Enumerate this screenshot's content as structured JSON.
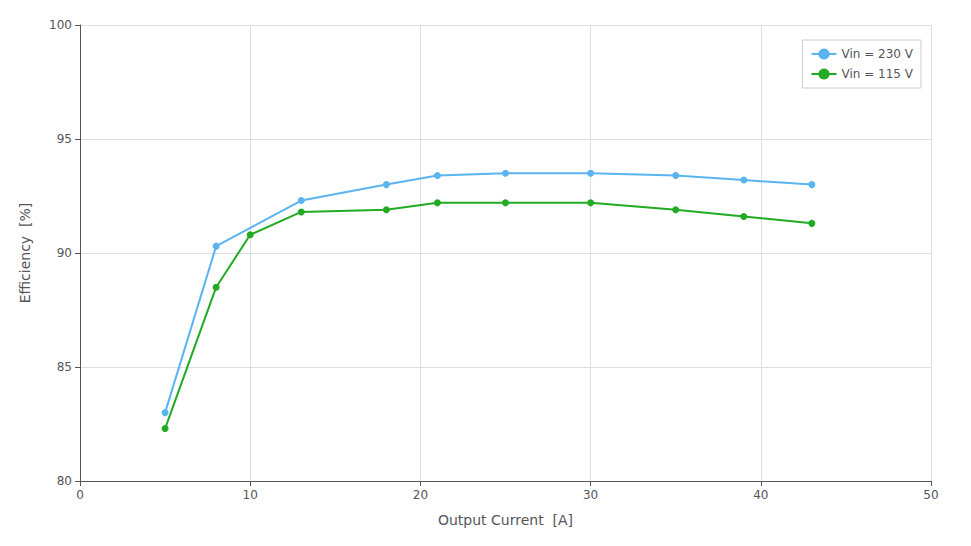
{
  "chart_data": {
    "type": "line",
    "xlabel": "Output Current  [A]",
    "ylabel": "Efficiency  [%]",
    "series": [
      {
        "name": "Vin = 230 V",
        "color": "#5ab4f0",
        "x": [
          5,
          8,
          13,
          18,
          21,
          25,
          30,
          35,
          39,
          43
        ],
        "values": [
          83.0,
          90.3,
          92.3,
          93.0,
          93.4,
          93.5,
          93.5,
          93.4,
          93.2,
          93.0
        ]
      },
      {
        "name": "Vin = 115 V",
        "color": "#22aa22",
        "x": [
          5,
          8,
          10,
          13,
          18,
          21,
          25,
          30,
          35,
          39,
          43
        ],
        "values": [
          82.3,
          88.5,
          90.8,
          91.8,
          91.9,
          92.2,
          92.2,
          92.2,
          91.9,
          91.6,
          91.3
        ]
      }
    ],
    "xlim": [
      0,
      50
    ],
    "ylim": [
      80,
      100
    ],
    "xticks": [
      0,
      10,
      20,
      30,
      40,
      50
    ],
    "yticks": [
      80,
      85,
      90,
      95,
      100
    ],
    "grid": true,
    "legend": "upper right",
    "marker": "circle"
  }
}
